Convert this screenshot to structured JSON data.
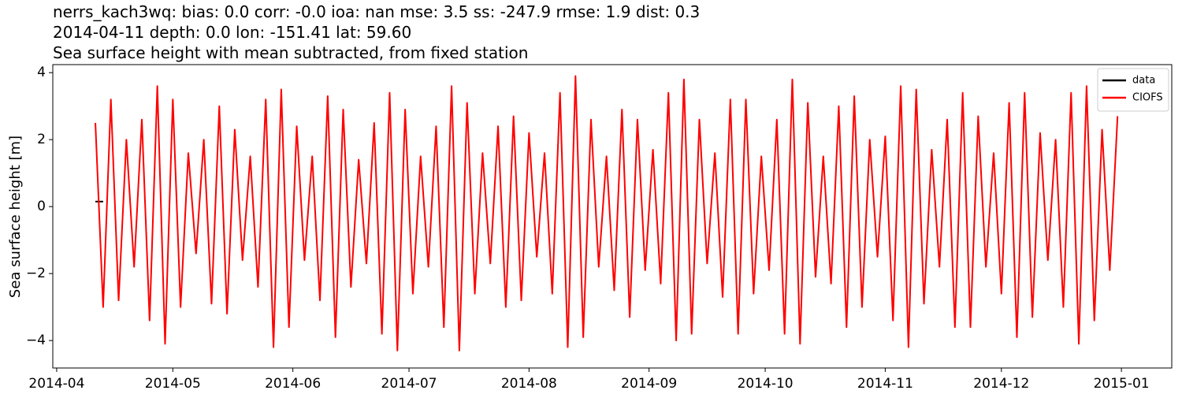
{
  "chart_data": {
    "type": "line",
    "title": [
      "nerrs_kach3wq: bias: 0.0  corr: -0.0  ioa: nan  mse: 3.5  ss: -247.9  rmse: 1.9  dist: 0.3",
      "2014-04-11 depth: 0.0 lon: -151.41 lat: 59.60",
      "Sea surface height with mean subtracted, from fixed station"
    ],
    "ylabel": "Sea surface height [m]",
    "x": [
      "2014-04-11",
      "2014-04-13",
      "2014-04-15",
      "2014-04-17",
      "2014-04-19",
      "2014-04-21",
      "2014-04-23",
      "2014-04-25",
      "2014-04-27",
      "2014-04-29",
      "2014-05-01",
      "2014-05-03",
      "2014-05-05",
      "2014-05-07",
      "2014-05-09",
      "2014-05-11",
      "2014-05-13",
      "2014-05-15",
      "2014-05-17",
      "2014-05-19",
      "2014-05-21",
      "2014-05-23",
      "2014-05-25",
      "2014-05-27",
      "2014-05-29",
      "2014-05-31",
      "2014-06-02",
      "2014-06-04",
      "2014-06-06",
      "2014-06-08",
      "2014-06-10",
      "2014-06-12",
      "2014-06-14",
      "2014-06-16",
      "2014-06-18",
      "2014-06-20",
      "2014-06-22",
      "2014-06-24",
      "2014-06-26",
      "2014-06-28",
      "2014-06-30",
      "2014-07-02",
      "2014-07-04",
      "2014-07-06",
      "2014-07-08",
      "2014-07-10",
      "2014-07-12",
      "2014-07-14",
      "2014-07-16",
      "2014-07-18",
      "2014-07-20",
      "2014-07-22",
      "2014-07-24",
      "2014-07-26",
      "2014-07-28",
      "2014-07-30",
      "2014-08-01",
      "2014-08-03",
      "2014-08-05",
      "2014-08-07",
      "2014-08-09",
      "2014-08-11",
      "2014-08-13",
      "2014-08-15",
      "2014-08-17",
      "2014-08-19",
      "2014-08-21",
      "2014-08-23",
      "2014-08-25",
      "2014-08-27",
      "2014-08-29",
      "2014-08-31",
      "2014-09-02",
      "2014-09-04",
      "2014-09-06",
      "2014-09-08",
      "2014-09-10",
      "2014-09-12",
      "2014-09-14",
      "2014-09-16",
      "2014-09-18",
      "2014-09-20",
      "2014-09-22",
      "2014-09-24",
      "2014-09-26",
      "2014-09-28",
      "2014-09-30",
      "2014-10-02",
      "2014-10-04",
      "2014-10-06",
      "2014-10-08",
      "2014-10-10",
      "2014-10-12",
      "2014-10-14",
      "2014-10-16",
      "2014-10-18",
      "2014-10-20",
      "2014-10-22",
      "2014-10-24",
      "2014-10-26",
      "2014-10-28",
      "2014-10-30",
      "2014-11-01",
      "2014-11-03",
      "2014-11-05",
      "2014-11-07",
      "2014-11-09",
      "2014-11-11",
      "2014-11-13",
      "2014-11-15",
      "2014-11-17",
      "2014-11-19",
      "2014-11-21",
      "2014-11-23",
      "2014-11-25",
      "2014-11-27",
      "2014-11-29",
      "2014-12-01",
      "2014-12-03",
      "2014-12-05",
      "2014-12-07",
      "2014-12-09",
      "2014-12-11",
      "2014-12-13",
      "2014-12-15",
      "2014-12-17",
      "2014-12-19",
      "2014-12-21",
      "2014-12-23",
      "2014-12-25",
      "2014-12-27",
      "2014-12-29",
      "2014-12-31"
    ],
    "series": [
      {
        "name": "data",
        "color": "#000000",
        "values": [
          0.15,
          0.15,
          null,
          null,
          null,
          null,
          null,
          null,
          null,
          null,
          null,
          null,
          null,
          null,
          null,
          null,
          null,
          null,
          null,
          null,
          null,
          null,
          null,
          null,
          null,
          null,
          null,
          null,
          null,
          null,
          null,
          null,
          null,
          null,
          null,
          null,
          null,
          null,
          null,
          null,
          null,
          null,
          null,
          null,
          null,
          null,
          null,
          null,
          null,
          null,
          null,
          null,
          null,
          null,
          null,
          null,
          null,
          null,
          null,
          null,
          null,
          null,
          null,
          null,
          null,
          null,
          null,
          null,
          null,
          null,
          null,
          null,
          null,
          null,
          null,
          null,
          null,
          null,
          null,
          null,
          null,
          null,
          null,
          null,
          null,
          null,
          null,
          null,
          null,
          null,
          null,
          null,
          null,
          null,
          null,
          null,
          null,
          null,
          null,
          null,
          null,
          null,
          null,
          null,
          null,
          null,
          null,
          null,
          null,
          null,
          null,
          null,
          null,
          null,
          null,
          null,
          null,
          null,
          null,
          null,
          null,
          null,
          null,
          null,
          null,
          null,
          null,
          null,
          null,
          null,
          null,
          null,
          null
        ]
      },
      {
        "name": "CIOFS",
        "color": "#ff0000",
        "values": [
          2.5,
          -3.0,
          3.2,
          -2.8,
          2.0,
          -1.8,
          2.6,
          -3.4,
          3.6,
          -4.1,
          3.2,
          -3.0,
          1.6,
          -1.4,
          2.0,
          -2.9,
          3.0,
          -3.2,
          2.3,
          -1.6,
          1.5,
          -2.4,
          3.2,
          -4.2,
          3.5,
          -3.6,
          2.4,
          -1.6,
          1.5,
          -2.8,
          3.3,
          -3.9,
          2.9,
          -2.4,
          1.4,
          -1.7,
          2.5,
          -3.8,
          3.4,
          -4.3,
          2.9,
          -2.6,
          1.5,
          -1.8,
          2.4,
          -3.6,
          3.6,
          -4.3,
          3.1,
          -2.6,
          1.6,
          -1.7,
          2.4,
          -3.0,
          2.7,
          -2.8,
          2.2,
          -1.5,
          1.6,
          -2.6,
          3.4,
          -4.2,
          3.9,
          -3.9,
          2.6,
          -1.8,
          1.5,
          -2.5,
          2.9,
          -3.3,
          2.6,
          -1.9,
          1.7,
          -2.3,
          3.4,
          -4.0,
          3.8,
          -3.8,
          2.6,
          -1.7,
          1.6,
          -2.7,
          3.2,
          -3.8,
          3.2,
          -2.6,
          1.5,
          -1.9,
          2.6,
          -3.8,
          3.8,
          -4.1,
          3.1,
          -2.1,
          1.5,
          -2.3,
          3.0,
          -3.6,
          3.3,
          -3.0,
          2.0,
          -1.5,
          2.1,
          -3.4,
          3.6,
          -4.2,
          3.5,
          -2.9,
          1.7,
          -1.8,
          2.6,
          -3.6,
          3.4,
          -3.6,
          2.7,
          -1.8,
          1.6,
          -2.6,
          3.1,
          -3.9,
          3.4,
          -3.3,
          2.2,
          -1.6,
          2.0,
          -3.0,
          3.4,
          -4.1,
          3.6,
          -3.4,
          2.3,
          -1.9,
          2.7
        ]
      }
    ],
    "xlim": [
      "2014-03-31",
      "2015-01-14"
    ],
    "xticks": [
      "2014-04",
      "2014-05",
      "2014-06",
      "2014-07",
      "2014-08",
      "2014-09",
      "2014-10",
      "2014-11",
      "2014-12",
      "2015-01"
    ],
    "ylim": [
      -4.82,
      4.24
    ],
    "yticks": [
      {
        "value": -4,
        "label": "−4"
      },
      {
        "value": -2,
        "label": "−2"
      },
      0,
      2,
      4
    ],
    "legend": "upper right"
  }
}
